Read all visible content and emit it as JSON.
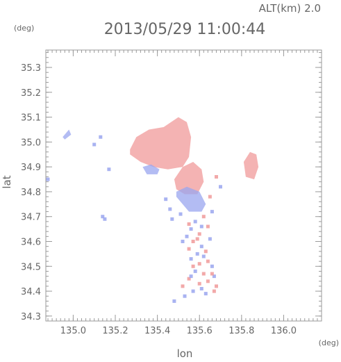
{
  "header": {
    "alt_label": "ALT(km) 2.0",
    "timestamp": "2013/05/29 11:00:44"
  },
  "chart_data": {
    "type": "heatmap",
    "title": "2013/05/29 11:00:44",
    "xlabel": "lon",
    "ylabel": "lat",
    "x_unit": "(deg)",
    "y_unit": "(deg)",
    "xlim": [
      134.87,
      136.18
    ],
    "ylim": [
      34.28,
      35.37
    ],
    "x_ticks": [
      135.0,
      135.2,
      135.4,
      135.6,
      135.8,
      136.0
    ],
    "x_tick_labels": [
      "135.0",
      "135.2",
      "135.4",
      "135.6",
      "135.8",
      "136.0"
    ],
    "y_ticks": [
      34.3,
      34.4,
      34.5,
      34.6,
      34.7,
      34.8,
      34.9,
      35.0,
      35.1,
      35.2,
      35.3
    ],
    "y_tick_labels": [
      "34.3",
      "34.4",
      "34.5",
      "34.6",
      "34.7",
      "34.8",
      "34.9",
      "35.0",
      "35.1",
      "35.2",
      "35.3"
    ],
    "grid": false,
    "colors": {
      "positive": "#f09a9a",
      "negative": "#9aa6ef",
      "axis": "#999999"
    },
    "regions": [
      {
        "kind": "positive",
        "lon": [
          135.27,
          135.3,
          135.36,
          135.43,
          135.5,
          135.54,
          135.56,
          135.55,
          135.52,
          135.45,
          135.38,
          135.32,
          135.27
        ],
        "lat": [
          34.97,
          35.02,
          35.05,
          35.06,
          35.1,
          35.08,
          35.02,
          34.94,
          34.9,
          34.89,
          34.9,
          34.92,
          34.95
        ]
      },
      {
        "kind": "positive",
        "lon": [
          135.48,
          135.52,
          135.57,
          135.61,
          135.62,
          135.59,
          135.53,
          135.49,
          135.48
        ],
        "lat": [
          34.85,
          34.9,
          34.92,
          34.89,
          34.84,
          34.79,
          34.79,
          34.81,
          34.85
        ]
      },
      {
        "kind": "positive",
        "lon": [
          135.81,
          135.84,
          135.87,
          135.88,
          135.86,
          135.82,
          135.81
        ],
        "lat": [
          34.92,
          34.96,
          34.95,
          34.9,
          34.85,
          34.86,
          34.92
        ]
      },
      {
        "kind": "negative",
        "lon": [
          135.33,
          135.37,
          135.41,
          135.4,
          135.35,
          135.33
        ],
        "lat": [
          34.9,
          34.91,
          34.89,
          34.87,
          34.87,
          34.9
        ]
      },
      {
        "kind": "negative",
        "lon": [
          135.49,
          135.54,
          135.6,
          135.63,
          135.61,
          135.55,
          135.49
        ],
        "lat": [
          34.8,
          34.82,
          34.8,
          34.75,
          34.72,
          34.72,
          34.78
        ]
      },
      {
        "kind": "negative",
        "lon": [
          134.95,
          134.98,
          134.99,
          134.96
        ],
        "lat": [
          35.02,
          35.05,
          35.03,
          35.01
        ]
      }
    ],
    "cells": [
      {
        "lon": 135.62,
        "lat": 34.7,
        "value": 1
      },
      {
        "lon": 135.58,
        "lat": 34.68,
        "value": -1
      },
      {
        "lon": 135.64,
        "lat": 34.66,
        "value": 1
      },
      {
        "lon": 135.56,
        "lat": 34.65,
        "value": -1
      },
      {
        "lon": 135.6,
        "lat": 34.63,
        "value": 1
      },
      {
        "lon": 135.54,
        "lat": 34.62,
        "value": -1
      },
      {
        "lon": 135.65,
        "lat": 34.61,
        "value": -1
      },
      {
        "lon": 135.57,
        "lat": 34.6,
        "value": 1
      },
      {
        "lon": 135.61,
        "lat": 34.58,
        "value": -1
      },
      {
        "lon": 135.55,
        "lat": 34.57,
        "value": 1
      },
      {
        "lon": 135.63,
        "lat": 34.56,
        "value": 1
      },
      {
        "lon": 135.59,
        "lat": 34.55,
        "value": -1
      },
      {
        "lon": 135.56,
        "lat": 34.53,
        "value": -1
      },
      {
        "lon": 135.64,
        "lat": 34.52,
        "value": 1
      },
      {
        "lon": 135.6,
        "lat": 34.51,
        "value": 1
      },
      {
        "lon": 135.66,
        "lat": 34.5,
        "value": -1
      },
      {
        "lon": 135.58,
        "lat": 34.48,
        "value": -1
      },
      {
        "lon": 135.62,
        "lat": 34.47,
        "value": 1
      },
      {
        "lon": 135.67,
        "lat": 34.46,
        "value": -1
      },
      {
        "lon": 135.55,
        "lat": 34.45,
        "value": 1
      },
      {
        "lon": 135.64,
        "lat": 34.44,
        "value": 1
      },
      {
        "lon": 135.6,
        "lat": 34.43,
        "value": 1
      },
      {
        "lon": 135.68,
        "lat": 34.42,
        "value": 1
      },
      {
        "lon": 135.52,
        "lat": 34.42,
        "value": 1
      },
      {
        "lon": 135.57,
        "lat": 34.4,
        "value": -1
      },
      {
        "lon": 135.63,
        "lat": 34.39,
        "value": -1
      },
      {
        "lon": 135.53,
        "lat": 34.38,
        "value": -1
      },
      {
        "lon": 135.48,
        "lat": 34.36,
        "value": -1
      },
      {
        "lon": 135.66,
        "lat": 34.72,
        "value": -1
      },
      {
        "lon": 135.51,
        "lat": 34.71,
        "value": -1
      },
      {
        "lon": 135.46,
        "lat": 34.73,
        "value": -1
      },
      {
        "lon": 135.7,
        "lat": 34.82,
        "value": -1
      },
      {
        "lon": 135.68,
        "lat": 34.86,
        "value": 1
      },
      {
        "lon": 135.65,
        "lat": 34.78,
        "value": 1
      },
      {
        "lon": 135.44,
        "lat": 34.77,
        "value": -1
      },
      {
        "lon": 135.47,
        "lat": 34.69,
        "value": -1
      },
      {
        "lon": 135.55,
        "lat": 34.67,
        "value": 1
      },
      {
        "lon": 135.61,
        "lat": 34.66,
        "value": -1
      },
      {
        "lon": 135.59,
        "lat": 34.61,
        "value": 1
      },
      {
        "lon": 135.52,
        "lat": 34.6,
        "value": -1
      },
      {
        "lon": 135.62,
        "lat": 34.54,
        "value": -1
      },
      {
        "lon": 135.57,
        "lat": 34.5,
        "value": 1
      },
      {
        "lon": 135.66,
        "lat": 34.47,
        "value": 1
      },
      {
        "lon": 135.56,
        "lat": 34.46,
        "value": -1
      },
      {
        "lon": 135.61,
        "lat": 34.41,
        "value": -1
      },
      {
        "lon": 135.67,
        "lat": 34.4,
        "value": 1
      },
      {
        "lon": 135.13,
        "lat": 35.02,
        "value": -1
      },
      {
        "lon": 135.1,
        "lat": 34.99,
        "value": -1
      },
      {
        "lon": 134.88,
        "lat": 34.85,
        "value": -1
      },
      {
        "lon": 135.17,
        "lat": 34.89,
        "value": -1
      },
      {
        "lon": 135.14,
        "lat": 34.7,
        "value": -1
      },
      {
        "lon": 135.15,
        "lat": 34.69,
        "value": -1
      }
    ]
  }
}
